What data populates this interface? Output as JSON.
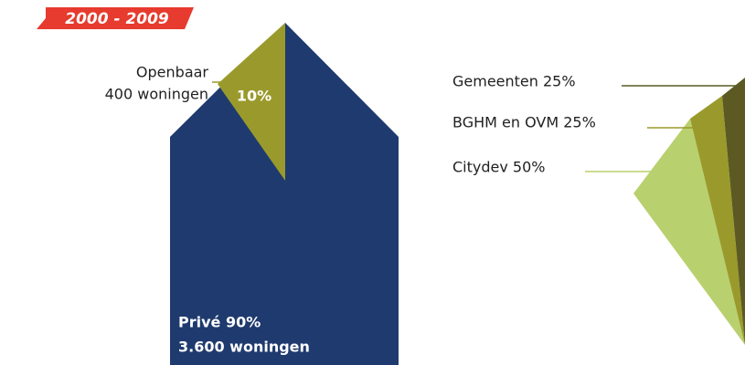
{
  "period": "2000 - 2009",
  "left": {
    "public": {
      "name": "Openbaar",
      "detail": "400 woningen",
      "share": "10%"
    },
    "private": {
      "label": "Privé 90%",
      "detail": "3.600 woningen"
    }
  },
  "right": {
    "segments": [
      {
        "label": "Gemeenten 25%"
      },
      {
        "label": "BGHM en OVM 25%"
      },
      {
        "label": "Citydev 50%"
      }
    ]
  }
}
